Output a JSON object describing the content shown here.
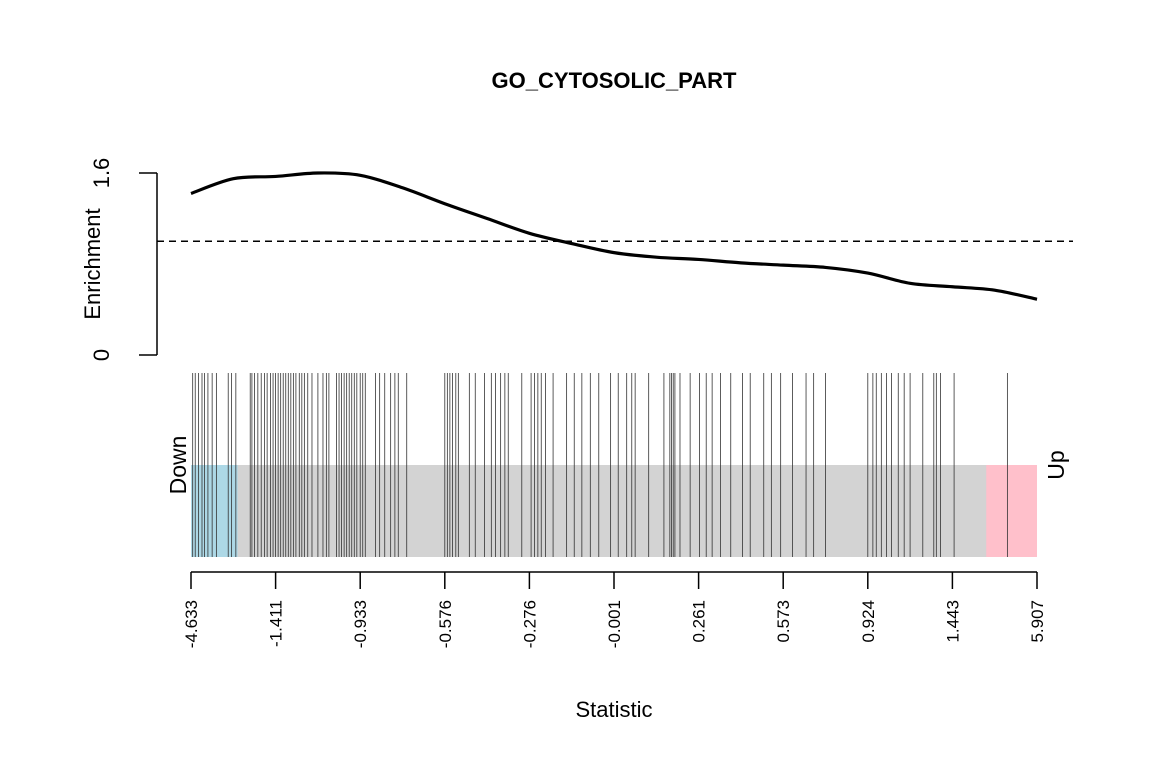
{
  "chart_data": {
    "type": "barcode",
    "title": "GO_CYTOSOLIC_PART",
    "xlabel": "Statistic",
    "ylabel": "Enrichment",
    "y_ticks": [
      "0",
      "1.6"
    ],
    "ylim": [
      0,
      1.6
    ],
    "x_tick_labels": [
      "-4.633",
      "-1.411",
      "-0.933",
      "-0.576",
      "-0.276",
      "-0.001",
      "0.261",
      "0.573",
      "0.924",
      "1.443",
      "5.907"
    ],
    "down_label": "Down",
    "up_label": "Up",
    "reference_line": 1.0,
    "enrichment_curve": [
      {
        "x": 0.0,
        "y": 1.42
      },
      {
        "x": 0.05,
        "y": 1.55
      },
      {
        "x": 0.1,
        "y": 1.57
      },
      {
        "x": 0.15,
        "y": 1.6
      },
      {
        "x": 0.2,
        "y": 1.58
      },
      {
        "x": 0.25,
        "y": 1.47
      },
      {
        "x": 0.3,
        "y": 1.33
      },
      {
        "x": 0.35,
        "y": 1.2
      },
      {
        "x": 0.4,
        "y": 1.07
      },
      {
        "x": 0.45,
        "y": 0.98
      },
      {
        "x": 0.5,
        "y": 0.9
      },
      {
        "x": 0.55,
        "y": 0.86
      },
      {
        "x": 0.6,
        "y": 0.84
      },
      {
        "x": 0.65,
        "y": 0.81
      },
      {
        "x": 0.7,
        "y": 0.79
      },
      {
        "x": 0.75,
        "y": 0.77
      },
      {
        "x": 0.8,
        "y": 0.72
      },
      {
        "x": 0.85,
        "y": 0.63
      },
      {
        "x": 0.9,
        "y": 0.6
      },
      {
        "x": 0.95,
        "y": 0.57
      },
      {
        "x": 1.0,
        "y": 0.49
      }
    ],
    "down_region": [
      0.0,
      0.055
    ],
    "up_region": [
      0.94,
      1.0
    ],
    "gene_positions": [
      0.002,
      0.005,
      0.009,
      0.013,
      0.016,
      0.02,
      0.025,
      0.03,
      0.044,
      0.048,
      0.053,
      0.07,
      0.072,
      0.075,
      0.079,
      0.083,
      0.087,
      0.09,
      0.094,
      0.097,
      0.1,
      0.103,
      0.106,
      0.109,
      0.112,
      0.115,
      0.118,
      0.121,
      0.124,
      0.128,
      0.131,
      0.134,
      0.138,
      0.143,
      0.15,
      0.156,
      0.16,
      0.163,
      0.172,
      0.175,
      0.178,
      0.181,
      0.184,
      0.187,
      0.19,
      0.193,
      0.196,
      0.2,
      0.203,
      0.206,
      0.218,
      0.223,
      0.229,
      0.236,
      0.241,
      0.245,
      0.255,
      0.3,
      0.303,
      0.306,
      0.309,
      0.313,
      0.316,
      0.329,
      0.336,
      0.347,
      0.355,
      0.36,
      0.366,
      0.371,
      0.375,
      0.391,
      0.402,
      0.406,
      0.41,
      0.414,
      0.419,
      0.428,
      0.444,
      0.453,
      0.462,
      0.472,
      0.482,
      0.496,
      0.505,
      0.515,
      0.521,
      0.525,
      0.541,
      0.559,
      0.566,
      0.568,
      0.57,
      0.572,
      0.578,
      0.59,
      0.601,
      0.609,
      0.616,
      0.626,
      0.638,
      0.652,
      0.661,
      0.677,
      0.686,
      0.697,
      0.711,
      0.727,
      0.736,
      0.75,
      0.8,
      0.806,
      0.81,
      0.816,
      0.822,
      0.828,
      0.836,
      0.843,
      0.85,
      0.865,
      0.878,
      0.881,
      0.886,
      0.902,
      0.965
    ]
  }
}
